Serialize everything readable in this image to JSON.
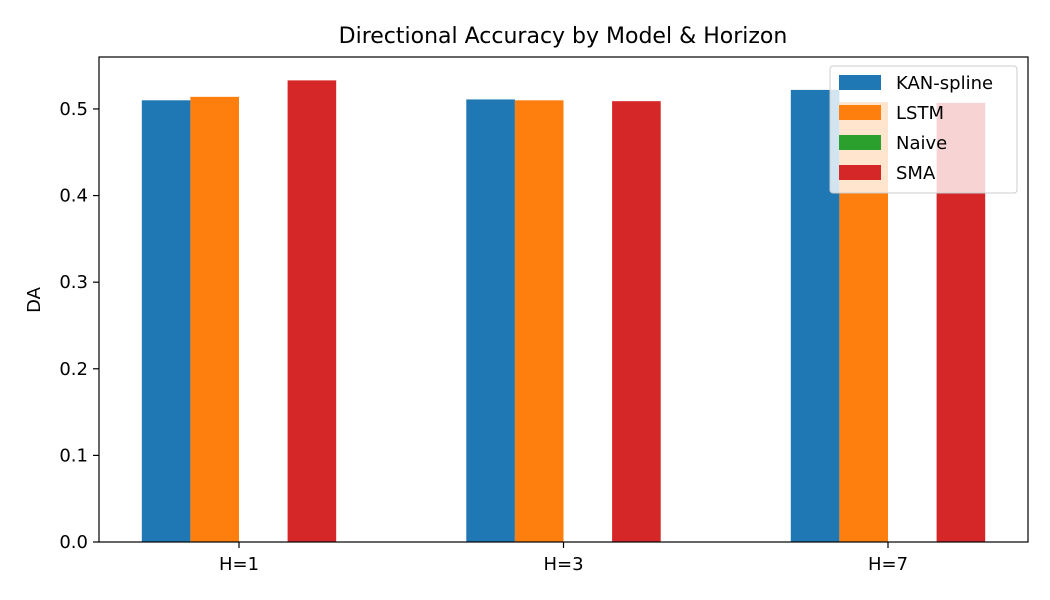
{
  "chart_data": {
    "type": "bar",
    "title": "Directional Accuracy by Model & Horizon",
    "xlabel": "",
    "ylabel": "DA",
    "categories": [
      "H=1",
      "H=3",
      "H=7"
    ],
    "ylim": [
      0,
      0.56
    ],
    "yticks": [
      "0.0",
      "0.1",
      "0.2",
      "0.3",
      "0.4",
      "0.5"
    ],
    "legend_position": "top-right",
    "grid": false,
    "series": [
      {
        "name": "KAN-spline",
        "color": "#1f77b4",
        "values": [
          0.51,
          0.511,
          0.522
        ]
      },
      {
        "name": "LSTM",
        "color": "#ff7f0e",
        "values": [
          0.514,
          0.51,
          0.508
        ]
      },
      {
        "name": "Naive",
        "color": "#2ca02c",
        "values": [
          0,
          0,
          0
        ]
      },
      {
        "name": "SMA",
        "color": "#d62728",
        "values": [
          0.533,
          0.509,
          0.507
        ]
      }
    ]
  }
}
